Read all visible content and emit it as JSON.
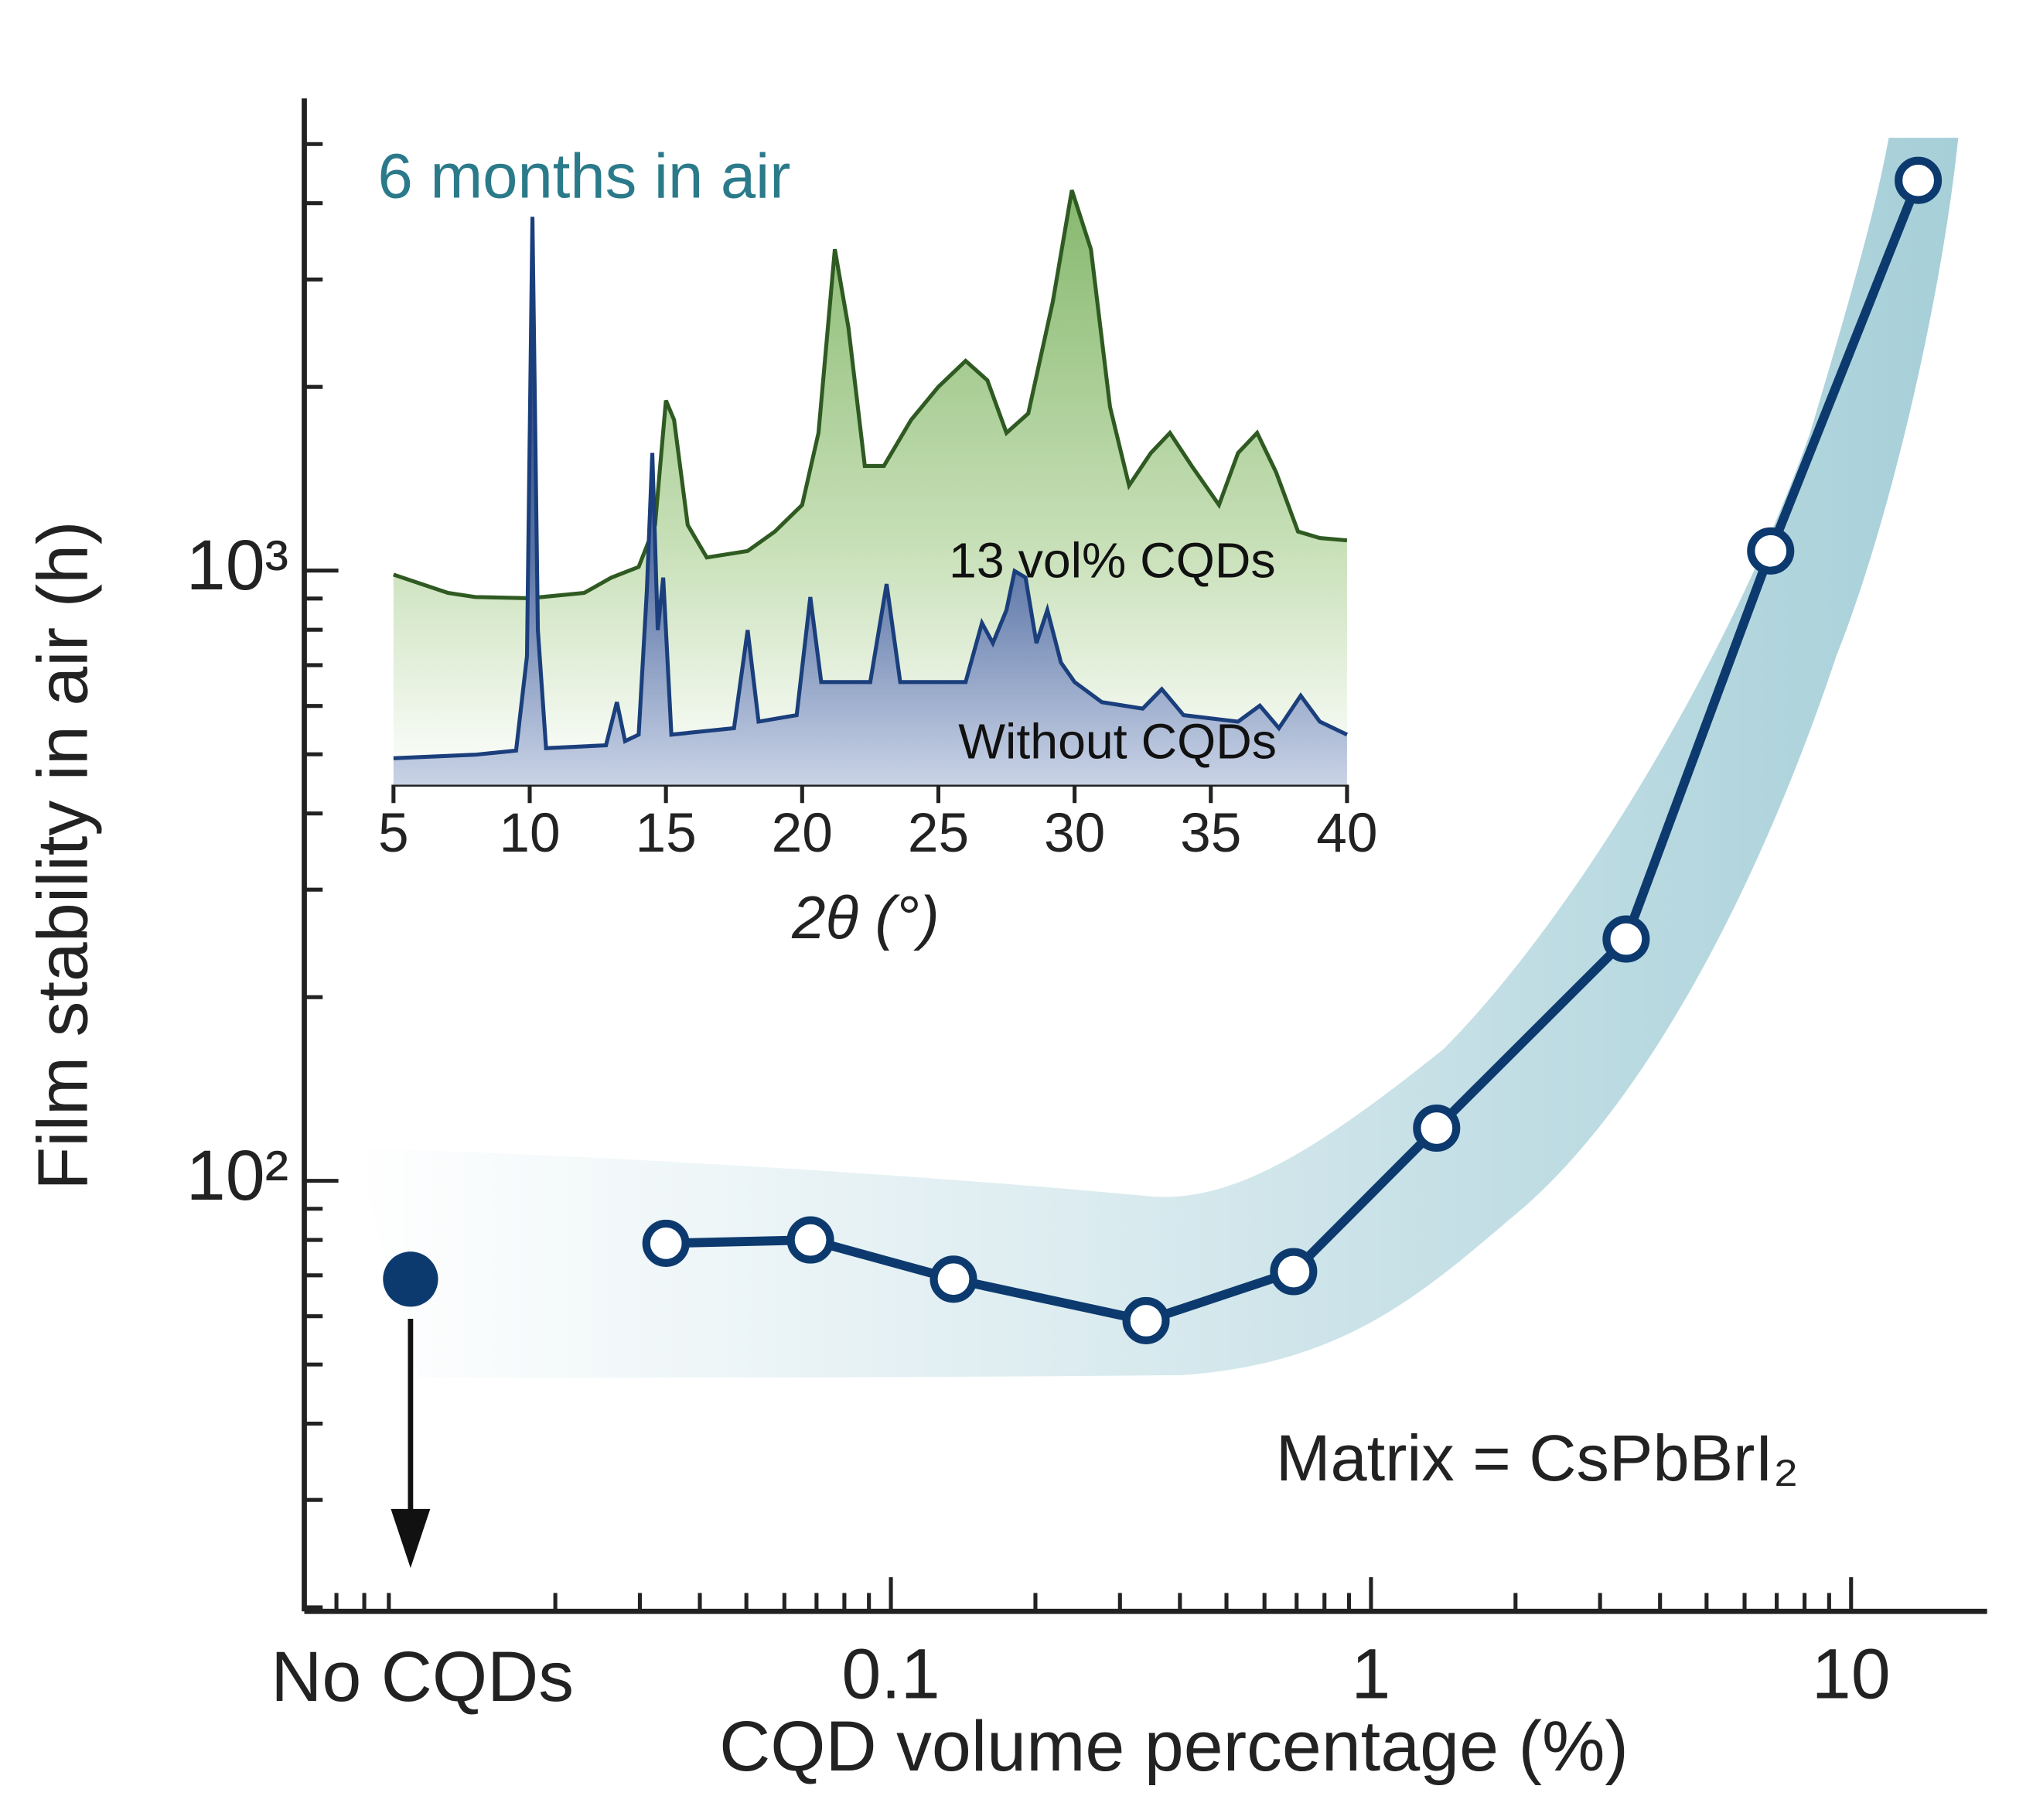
{
  "chart_data": [
    {
      "type": "line",
      "y_label": "Film stability in air (h)",
      "x_label": "CQD volume percentage (%)",
      "annotation": "Matrix = CsPbBrI₂",
      "log_x": true,
      "log_y": true,
      "color": "#0d3a6e",
      "x": [
        0.034,
        0.068,
        0.135,
        0.34,
        0.69,
        1.37,
        3.4,
        6.8,
        13.8
      ],
      "values": [
        79,
        80,
        69,
        59,
        71,
        122,
        249,
        1077,
        4360
      ],
      "no_cqd": {
        "label": "No CQDs",
        "value": 69
      },
      "xlim": [
        0.006,
        19.2
      ],
      "ylim": [
        19.7,
        5940
      ],
      "xticks": [
        0.1,
        1,
        10
      ],
      "yticks": [
        {
          "value": 100,
          "label": "10²"
        },
        {
          "value": 1000,
          "label": "10³"
        }
      ],
      "minor_xticks": [
        0.007,
        0.008,
        0.009,
        0.02,
        0.03,
        0.04,
        0.05,
        0.06,
        0.07,
        0.08,
        0.09,
        0.2,
        0.3,
        0.4,
        0.5,
        0.6,
        0.7,
        0.8,
        0.9,
        2,
        3,
        4,
        5,
        6,
        7,
        8,
        9
      ],
      "minor_yticks": [
        20,
        30,
        40,
        50,
        60,
        70,
        80,
        90,
        200,
        300,
        400,
        500,
        600,
        700,
        800,
        900,
        2000,
        3000,
        4000,
        5000
      ]
    },
    {
      "type": "area",
      "title": "6 months in air",
      "x_label": "2θ (°)",
      "xlim": [
        5,
        40
      ],
      "ylim": [
        0,
        100
      ],
      "xticks": [
        5,
        10,
        15,
        20,
        25,
        30,
        35,
        40
      ],
      "series": [
        {
          "name": "13 vol% CQDs",
          "color": "#2f5a22",
          "x": [
            5,
            7,
            8,
            10,
            12,
            13,
            14,
            14.6,
            15,
            15.3,
            15.8,
            16.5,
            18,
            19,
            20,
            20.6,
            21.2,
            21.7,
            22.3,
            23,
            24,
            25,
            26,
            26.8,
            27.5,
            28.3,
            29.2,
            29.9,
            30.6,
            31.3,
            32,
            32.8,
            33.5,
            34.3,
            35.3,
            36,
            36.7,
            37.4,
            38.2,
            39,
            40
          ],
          "values": [
            33.8,
            30.7,
            30,
            29.8,
            30.7,
            33.3,
            35.1,
            42.2,
            63.3,
            60,
            42.2,
            36.7,
            37.8,
            41.1,
            45.6,
            57.8,
            88.9,
            75.6,
            52.2,
            52.2,
            60,
            65.6,
            70,
            66.7,
            57.8,
            61.1,
            80,
            98.9,
            88.9,
            62.2,
            48.9,
            54.4,
            57.8,
            52.2,
            45.6,
            54.4,
            57.8,
            51.1,
            41.1,
            40,
            39.6
          ]
        },
        {
          "name": "Without CQDs",
          "color": "#1b3f7c",
          "x": [
            5,
            8,
            9.5,
            9.9,
            10.1,
            10.3,
            10.6,
            12.8,
            13.2,
            13.5,
            14,
            14.3,
            14.5,
            14.7,
            14.9,
            15.2,
            17.5,
            18,
            18.4,
            19.8,
            20.3,
            20.7,
            22.5,
            23.1,
            23.6,
            26,
            26.6,
            27,
            27.5,
            27.8,
            28.2,
            28.6,
            29,
            29.5,
            30,
            31,
            32.5,
            33.2,
            34,
            36,
            36.8,
            37.5,
            38.3,
            39,
            40
          ],
          "values": [
            2.7,
            3.3,
            4,
            20,
            94.4,
            24.4,
            4.4,
            4.9,
            12.2,
            5.6,
            6.7,
            31.1,
            54.4,
            24.4,
            33.3,
            6.7,
            7.8,
            24.4,
            8.9,
            10,
            30,
            15.6,
            15.6,
            32.2,
            15.6,
            15.6,
            25.6,
            22.2,
            27.8,
            34.4,
            33.3,
            22.2,
            27.8,
            18.9,
            15.6,
            12.2,
            11.1,
            14.4,
            10,
            8.9,
            11.6,
            7.8,
            13.3,
            8.9,
            6.7
          ]
        }
      ]
    }
  ]
}
